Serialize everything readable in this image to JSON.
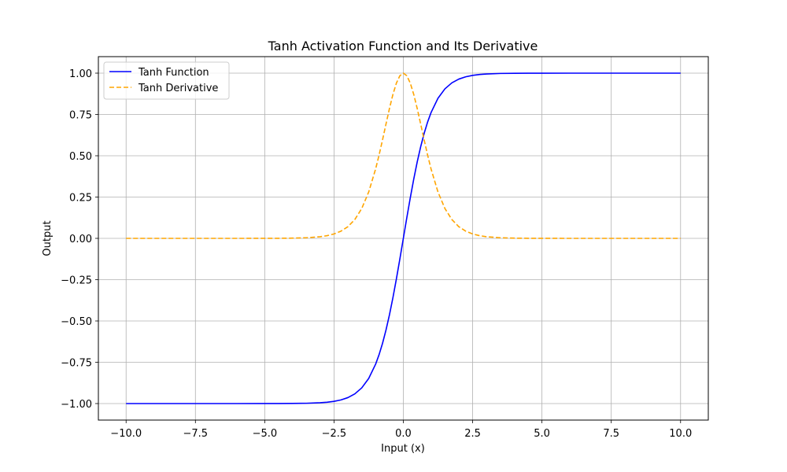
{
  "chart_data": {
    "type": "line",
    "title": "Tanh Activation Function and Its Derivative",
    "xlabel": "Input (x)",
    "ylabel": "Output",
    "xlim": [
      -11,
      11
    ],
    "ylim": [
      -1.1,
      1.1
    ],
    "x": [
      -10,
      -9,
      -8,
      -7,
      -6,
      -5,
      -4.5,
      -4,
      -3.5,
      -3,
      -2.75,
      -2.5,
      -2.25,
      -2,
      -1.75,
      -1.5,
      -1.25,
      -1,
      -0.875,
      -0.75,
      -0.625,
      -0.5,
      -0.375,
      -0.25,
      -0.125,
      0,
      0.125,
      0.25,
      0.375,
      0.5,
      0.625,
      0.75,
      0.875,
      1,
      1.25,
      1.5,
      1.75,
      2,
      2.25,
      2.5,
      2.75,
      3,
      3.5,
      4,
      4.5,
      5,
      6,
      7,
      8,
      9,
      10
    ],
    "series": [
      {
        "name": "Tanh Function",
        "color": "#0000ff",
        "dash": "solid",
        "values": [
          -1.0,
          -1.0,
          -1.0,
          -1.0,
          -1.0,
          -0.9999,
          -0.9998,
          -0.9993,
          -0.9982,
          -0.9951,
          -0.9919,
          -0.9866,
          -0.978,
          -0.964,
          -0.9414,
          -0.9051,
          -0.8483,
          -0.7616,
          -0.7039,
          -0.6351,
          -0.5546,
          -0.4621,
          -0.3584,
          -0.2449,
          -0.1244,
          0.0,
          0.1244,
          0.2449,
          0.3584,
          0.4621,
          0.5546,
          0.6351,
          0.7039,
          0.7616,
          0.8483,
          0.9051,
          0.9414,
          0.964,
          0.978,
          0.9866,
          0.9919,
          0.9951,
          0.9982,
          0.9993,
          0.9998,
          0.9999,
          1.0,
          1.0,
          1.0,
          1.0,
          1.0
        ]
      },
      {
        "name": "Tanh Derivative",
        "color": "#ffa500",
        "dash": "dashed",
        "values": [
          0.0,
          0.0,
          0.0,
          0.0,
          0.0,
          0.0002,
          0.0005,
          0.0013,
          0.0036,
          0.0099,
          0.0163,
          0.0266,
          0.0436,
          0.0707,
          0.1138,
          0.1807,
          0.2805,
          0.42,
          0.5045,
          0.5966,
          0.6924,
          0.7864,
          0.8716,
          0.94,
          0.9845,
          1.0,
          0.9845,
          0.94,
          0.8716,
          0.7864,
          0.6924,
          0.5966,
          0.5045,
          0.42,
          0.2805,
          0.1807,
          0.1138,
          0.0707,
          0.0436,
          0.0266,
          0.0163,
          0.0099,
          0.0036,
          0.0013,
          0.0005,
          0.0002,
          0.0,
          0.0,
          0.0,
          0.0,
          0.0
        ]
      }
    ],
    "xticks": [
      -10,
      -7.5,
      -5,
      -2.5,
      0,
      2.5,
      5,
      7.5,
      10
    ],
    "xtick_labels": [
      "−10.0",
      "−7.5",
      "−5.0",
      "−2.5",
      "0.0",
      "2.5",
      "5.0",
      "7.5",
      "10.0"
    ],
    "yticks": [
      -1,
      -0.75,
      -0.5,
      -0.25,
      0,
      0.25,
      0.5,
      0.75,
      1
    ],
    "ytick_labels": [
      "−1.00",
      "−0.75",
      "−0.50",
      "−0.25",
      "0.00",
      "0.25",
      "0.50",
      "0.75",
      "1.00"
    ],
    "grid": true,
    "legend_position": "top-left"
  }
}
